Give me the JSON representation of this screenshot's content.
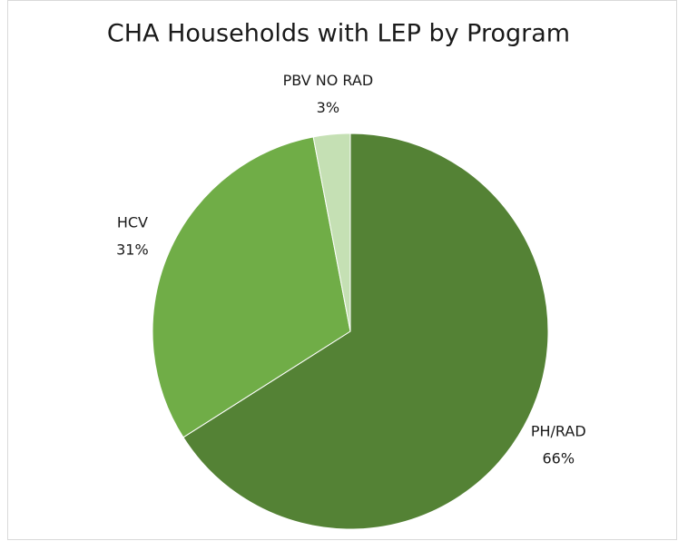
{
  "chart_data": {
    "type": "pie",
    "title": "CHA Households with LEP by Program",
    "categories": [
      "PH/RAD",
      "HCV",
      "PBV NO RAD"
    ],
    "values": [
      66,
      31,
      3
    ],
    "value_labels": [
      "66%",
      "31%",
      "3%"
    ],
    "colors": [
      "#548235",
      "#70ad47",
      "#c5e0b4"
    ]
  }
}
